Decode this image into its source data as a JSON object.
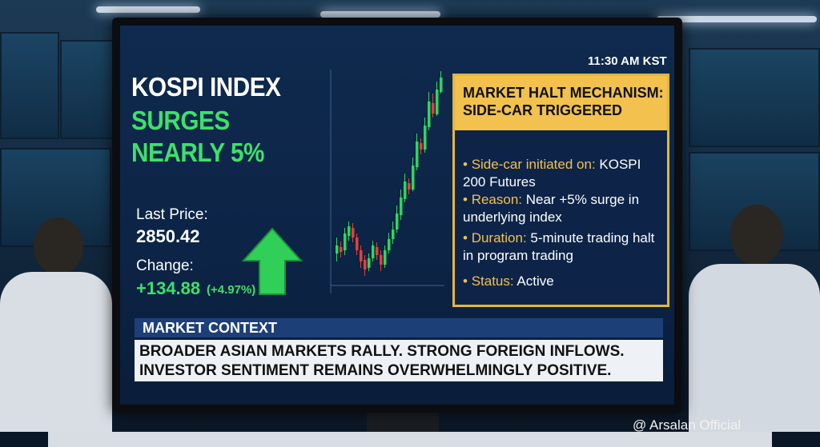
{
  "screen": {
    "time": "11:30 AM KST",
    "headline": [
      "KOSPI INDEX",
      "SURGES",
      "NEARLY 5%"
    ],
    "last_price": {
      "label": "Last Price:",
      "value": "2850.42"
    },
    "change": {
      "label": "Change:",
      "value": "+134.88",
      "percent": "(+4.97%)"
    },
    "halt_box": {
      "title": [
        "MARKET HALT MECHANISM:",
        "SIDE-CAR TRIGGERED"
      ],
      "items": [
        {
          "label": "Side-car initiated on:",
          "text": "KOSPI 200 Futures"
        },
        {
          "label": "Reason:",
          "text": "Near +5% surge in underlying index"
        },
        {
          "label": "Duration:",
          "text": "5-minute trading halt in program trading"
        },
        {
          "label": "Status:",
          "text": "Active"
        }
      ]
    },
    "context": {
      "title": "MARKET CONTEXT",
      "lines": [
        "BROADER ASIAN MARKETS RALLY. STRONG FOREIGN INFLOWS.",
        "INVESTOR SENTIMENT REMAINS OVERWHELMINGLY POSITIVE."
      ]
    }
  },
  "watermark": "@ Arsalan Official"
}
